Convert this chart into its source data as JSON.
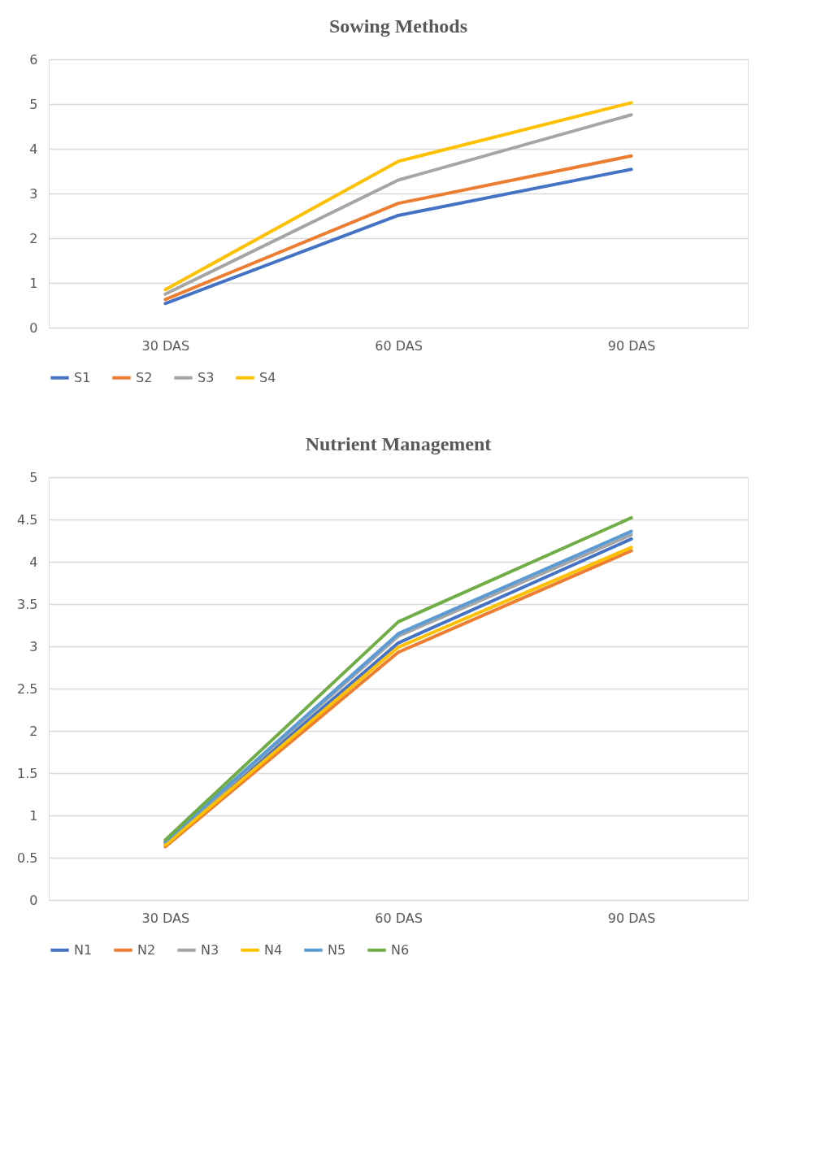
{
  "chart_data": [
    {
      "type": "line",
      "title": "Sowing Methods",
      "categories": [
        "30 DAS",
        "60 DAS",
        "90 DAS"
      ],
      "ylim": [
        0,
        6
      ],
      "yticks": [
        0,
        1,
        2,
        3,
        4,
        5,
        6
      ],
      "grid": "y",
      "legend": "bottom",
      "marker": "none",
      "series": [
        {
          "name": "S1",
          "color": "#4472c4",
          "values": [
            0.54,
            2.51,
            3.54
          ]
        },
        {
          "name": "S2",
          "color": "#ed7d31",
          "values": [
            0.63,
            2.78,
            3.84
          ]
        },
        {
          "name": "S3",
          "color": "#a5a5a5",
          "values": [
            0.75,
            3.3,
            4.76
          ]
        },
        {
          "name": "S4",
          "color": "#ffc000",
          "values": [
            0.85,
            3.72,
            5.03
          ]
        }
      ]
    },
    {
      "type": "line",
      "title": "Nutrient Management",
      "categories": [
        "30 DAS",
        "60 DAS",
        "90 DAS"
      ],
      "ylim": [
        0,
        5
      ],
      "yticks": [
        0,
        0.5,
        1,
        1.5,
        2,
        2.5,
        3,
        3.5,
        4,
        4.5,
        5
      ],
      "grid": "y",
      "legend": "bottom",
      "marker": "none",
      "series": [
        {
          "name": "N1",
          "color": "#4472c4",
          "values": [
            0.67,
            3.04,
            4.27
          ]
        },
        {
          "name": "N2",
          "color": "#ed7d31",
          "values": [
            0.63,
            2.93,
            4.13
          ]
        },
        {
          "name": "N3",
          "color": "#a5a5a5",
          "values": [
            0.68,
            3.12,
            4.32
          ]
        },
        {
          "name": "N4",
          "color": "#ffc000",
          "values": [
            0.65,
            2.99,
            4.17
          ]
        },
        {
          "name": "N5",
          "color": "#5b9bd5",
          "values": [
            0.69,
            3.15,
            4.36
          ]
        },
        {
          "name": "N6",
          "color": "#70ad47",
          "values": [
            0.71,
            3.29,
            4.52
          ]
        }
      ]
    }
  ]
}
